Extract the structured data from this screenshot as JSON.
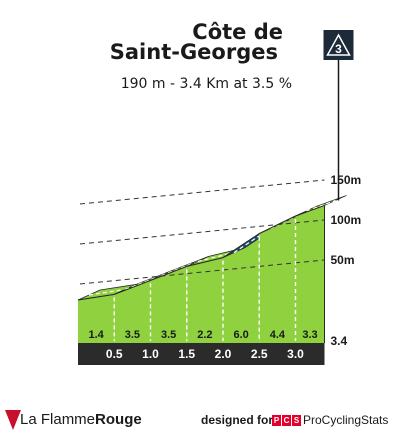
{
  "climb": {
    "name_line1": "Côte de",
    "name_line2": "Saint-Georges",
    "summary": "190 m - 3.4 Km at 3.5 %",
    "category": "3"
  },
  "chart_data": {
    "type": "area",
    "x_unit": "km",
    "y_unit": "m",
    "distance_ticks": [
      "0.5",
      "1.0",
      "1.5",
      "2.0",
      "2.5",
      "3.0",
      "3.4"
    ],
    "segments": [
      {
        "from": 0.0,
        "to": 0.5,
        "gradient": "1.4"
      },
      {
        "from": 0.5,
        "to": 1.0,
        "gradient": "3.5"
      },
      {
        "from": 1.0,
        "to": 1.5,
        "gradient": "3.5"
      },
      {
        "from": 1.5,
        "to": 2.0,
        "gradient": "2.2"
      },
      {
        "from": 2.0,
        "to": 2.5,
        "gradient": "6.0"
      },
      {
        "from": 2.5,
        "to": 3.0,
        "gradient": "4.4"
      },
      {
        "from": 3.0,
        "to": 3.4,
        "gradient": "3.3"
      }
    ],
    "altitude_labels": [
      "50m",
      "100m",
      "150m"
    ],
    "altitude_values": [
      50,
      100,
      150
    ],
    "colors": {
      "moderate_fill": "#8fd13f",
      "steep_fill": "#1c4f73",
      "base": "#2b2b2b",
      "side": "#a69f99"
    }
  },
  "footer": {
    "brand_part1": "La Flamme",
    "brand_part2": "Rouge",
    "designed_for": "designed for",
    "pcs_letters": [
      "P",
      "C",
      "S"
    ],
    "pcs_name": "ProCyclingStats"
  }
}
